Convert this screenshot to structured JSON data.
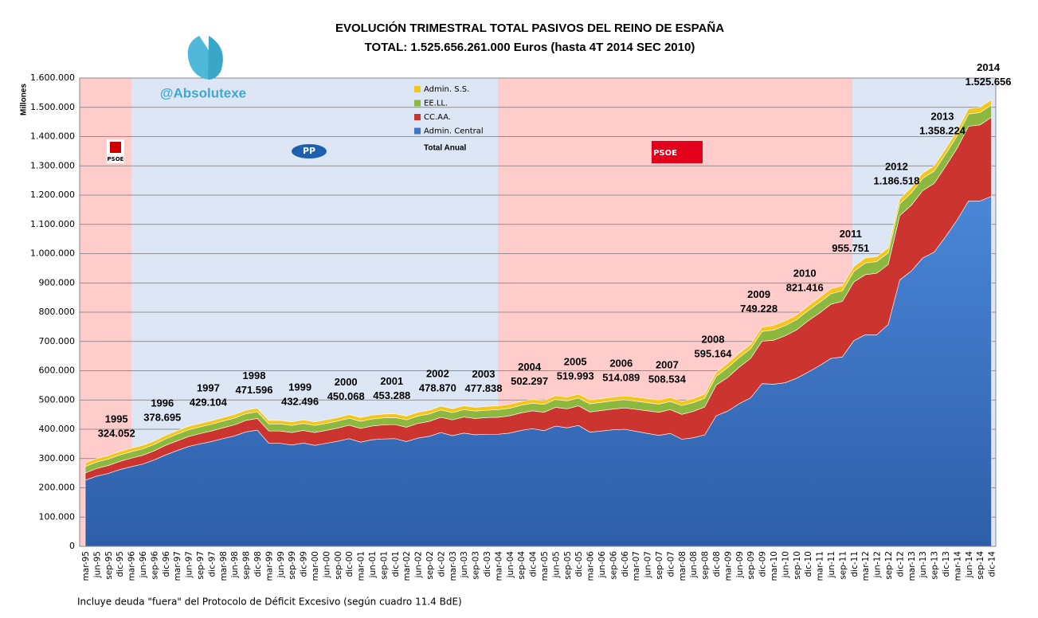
{
  "chart_data": {
    "type": "stacked_area",
    "title": "EVOLUCIÓN TRIMESTRAL TOTAL PASIVOS DEL REINO DE ESPAÑA",
    "subtitle": "TOTAL: 1.525.656.261.000 Euros (hasta 4T 2014 SEC 2010)",
    "y_label": "Millones",
    "watermark": "@Absolutexe",
    "footnote": "Incluye deuda \"fuera\" del Protocolo de Déficit Excesivo (según cuadro 11.4 BdE)",
    "total_label": "Total Anual",
    "logos": [
      "PSOE",
      "PP",
      "PSOE"
    ],
    "categories": [
      "mar-95",
      "jun-95",
      "sep-95",
      "dic-95",
      "mar-96",
      "jun-96",
      "sep-96",
      "dic-96",
      "mar-97",
      "jun-97",
      "sep-97",
      "dic-97",
      "mar-98",
      "jun-98",
      "sep-98",
      "dic-98",
      "mar-99",
      "jun-99",
      "sep-99",
      "dic-99",
      "mar-00",
      "jun-00",
      "sep-00",
      "dic-00",
      "mar-01",
      "jun-01",
      "sep-01",
      "dic-01",
      "mar-02",
      "jun-02",
      "sep-02",
      "dic-02",
      "mar-03",
      "jun-03",
      "sep-03",
      "dic-03",
      "mar-04",
      "jun-04",
      "sep-04",
      "dic-04",
      "mar-05",
      "jun-05",
      "sep-05",
      "dic-05",
      "mar-06",
      "jun-06",
      "sep-06",
      "dic-06",
      "mar-07",
      "jun-07",
      "sep-07",
      "dic-07",
      "mar-08",
      "jun-08",
      "sep-08",
      "dic-08",
      "mar-09",
      "jun-09",
      "sep-09",
      "dic-09",
      "mar-10",
      "jun-10",
      "sep-10",
      "dic-10",
      "mar-11",
      "jun-11",
      "sep-11",
      "dic-11",
      "mar-12",
      "jun-12",
      "sep-12",
      "dic-12",
      "mar-13",
      "jun-13",
      "sep-13",
      "dic-13",
      "mar-14",
      "jun-14",
      "sep-14",
      "dic-14"
    ],
    "series": [
      {
        "name": "Admin. Central",
        "color": "#3d74c4",
        "values": [
          226000,
          240000,
          249000,
          262000,
          272000,
          281000,
          295000,
          312000,
          327000,
          341000,
          350000,
          358000,
          368000,
          377000,
          391000,
          397000,
          352000,
          352000,
          346000,
          353000,
          345000,
          352000,
          359000,
          368000,
          356000,
          364000,
          367000,
          368000,
          358000,
          370000,
          376000,
          389000,
          378000,
          387000,
          381000,
          383000,
          383000,
          387000,
          396000,
          402000,
          395000,
          411000,
          405000,
          413000,
          390000,
          394000,
          398000,
          400000,
          393000,
          386000,
          379000,
          386000,
          366000,
          371000,
          381000,
          446000,
          462000,
          487000,
          507000,
          556000,
          554000,
          559000,
          574000,
          595000,
          617000,
          642000,
          647000,
          703000,
          723000,
          723000,
          758000,
          910000,
          940000,
          985000,
          1005000,
          1058000,
          1115000,
          1180000,
          1180000,
          1196000
        ]
      },
      {
        "name": "CC.AA.",
        "color": "#cc3430",
        "values": [
          25000,
          26000,
          27000,
          28000,
          29000,
          30000,
          31000,
          33000,
          33000,
          34000,
          35000,
          36000,
          37000,
          38000,
          39000,
          40000,
          42000,
          42000,
          43000,
          43000,
          44000,
          44000,
          45000,
          46000,
          47000,
          47000,
          48000,
          48000,
          49000,
          50000,
          51000,
          52000,
          54000,
          55000,
          56000,
          57000,
          58000,
          59000,
          60000,
          61000,
          63000,
          64000,
          65000,
          67000,
          69000,
          70000,
          71000,
          73000,
          75000,
          77000,
          79000,
          81000,
          85000,
          90000,
          95000,
          105000,
          115000,
          125000,
          135000,
          145000,
          150000,
          160000,
          165000,
          175000,
          180000,
          185000,
          190000,
          200000,
          205000,
          210000,
          205000,
          220000,
          225000,
          230000,
          235000,
          240000,
          245000,
          255000,
          260000,
          270000
        ]
      },
      {
        "name": "EE.LL.",
        "color": "#8db83f",
        "values": [
          22000,
          22000,
          22000,
          22000,
          22000,
          22000,
          22000,
          22000,
          23000,
          23000,
          23000,
          23000,
          23000,
          23000,
          23000,
          23000,
          24000,
          24000,
          24000,
          24000,
          24000,
          24000,
          24000,
          24000,
          24000,
          24000,
          24000,
          24000,
          25000,
          25000,
          25000,
          25000,
          25000,
          25000,
          25000,
          25000,
          26000,
          26000,
          26000,
          26000,
          27000,
          27000,
          27000,
          27000,
          28000,
          28000,
          28000,
          28000,
          28000,
          28000,
          28000,
          28000,
          30000,
          30000,
          30000,
          30000,
          33000,
          33000,
          33000,
          33000,
          35000,
          35000,
          35000,
          35000,
          36000,
          36000,
          36000,
          36000,
          40000,
          40000,
          40000,
          40000,
          42000,
          42000,
          42000,
          42000,
          42000,
          42000,
          42000,
          42000
        ]
      },
      {
        "name": "Admin. S.S.",
        "color": "#f4c51a",
        "values": [
          12000,
          12000,
          12000,
          12000,
          12000,
          12000,
          12000,
          12000,
          12000,
          12000,
          12000,
          12000,
          12000,
          12000,
          12000,
          12000,
          12000,
          12000,
          12000,
          12000,
          12000,
          12000,
          12000,
          12000,
          13000,
          13000,
          13000,
          13000,
          13000,
          13000,
          13000,
          13000,
          13000,
          13000,
          13000,
          13000,
          13000,
          13000,
          13000,
          13000,
          13000,
          13000,
          13000,
          13000,
          13000,
          13000,
          13000,
          13000,
          14000,
          14000,
          14000,
          14000,
          14000,
          14000,
          14000,
          14000,
          15000,
          15000,
          15000,
          15000,
          16000,
          16000,
          16000,
          16000,
          17000,
          17000,
          17000,
          17000,
          17000,
          17000,
          17000,
          17000,
          18000,
          18000,
          18000,
          18000,
          18000,
          18000,
          18000,
          18000
        ]
      }
    ],
    "annual": {
      "years": [
        "1995",
        "1996",
        "1997",
        "1998",
        "1999",
        "2000",
        "2001",
        "2002",
        "2003",
        "2004",
        "2005",
        "2006",
        "2007",
        "2008",
        "2009",
        "2010",
        "2011",
        "2012",
        "2013",
        "2014"
      ],
      "values": [
        324052,
        378695,
        429104,
        471596,
        432496,
        450068,
        453288,
        478870,
        477838,
        502297,
        519993,
        514089,
        508534,
        595164,
        749228,
        821416,
        955751,
        1186518,
        1358224,
        1525656
      ],
      "value_labels": [
        "324.052",
        "378.695",
        "429.104",
        "471.596",
        "432.496",
        "450.068",
        "453.288",
        "478.870",
        "477.838",
        "502.297",
        "519.993",
        "514.089",
        "508.534",
        "595.164",
        "749.228",
        "821.416",
        "955.751",
        "1.186.518",
        "1.358.224",
        "1.525.656"
      ]
    },
    "ylim": [
      0,
      1600000
    ],
    "yticks": [
      0,
      {
        "value": 100000,
        "label": "100.000"
      },
      {
        "value": 200000,
        "label": "200.000"
      },
      {
        "value": 300000,
        "label": "300.000"
      },
      {
        "value": 400000,
        "label": "400.000"
      },
      {
        "value": 500000,
        "label": "500.000"
      },
      {
        "value": 600000,
        "label": "600.000"
      },
      {
        "value": 700000,
        "label": "700.000"
      },
      {
        "value": 800000,
        "label": "800.000"
      },
      {
        "value": 900000,
        "label": "900.000"
      },
      {
        "value": 1000000,
        "label": "1.000.000"
      },
      {
        "value": 1100000,
        "label": "1.100.000"
      },
      {
        "value": 1200000,
        "label": "1.200.000"
      },
      {
        "value": 1300000,
        "label": "1.300.000"
      },
      {
        "value": 1400000,
        "label": "1.400.000"
      },
      {
        "value": 1500000,
        "label": "1.500.000"
      },
      {
        "value": 1600000,
        "label": "1.600.000"
      }
    ],
    "grid": true
  }
}
